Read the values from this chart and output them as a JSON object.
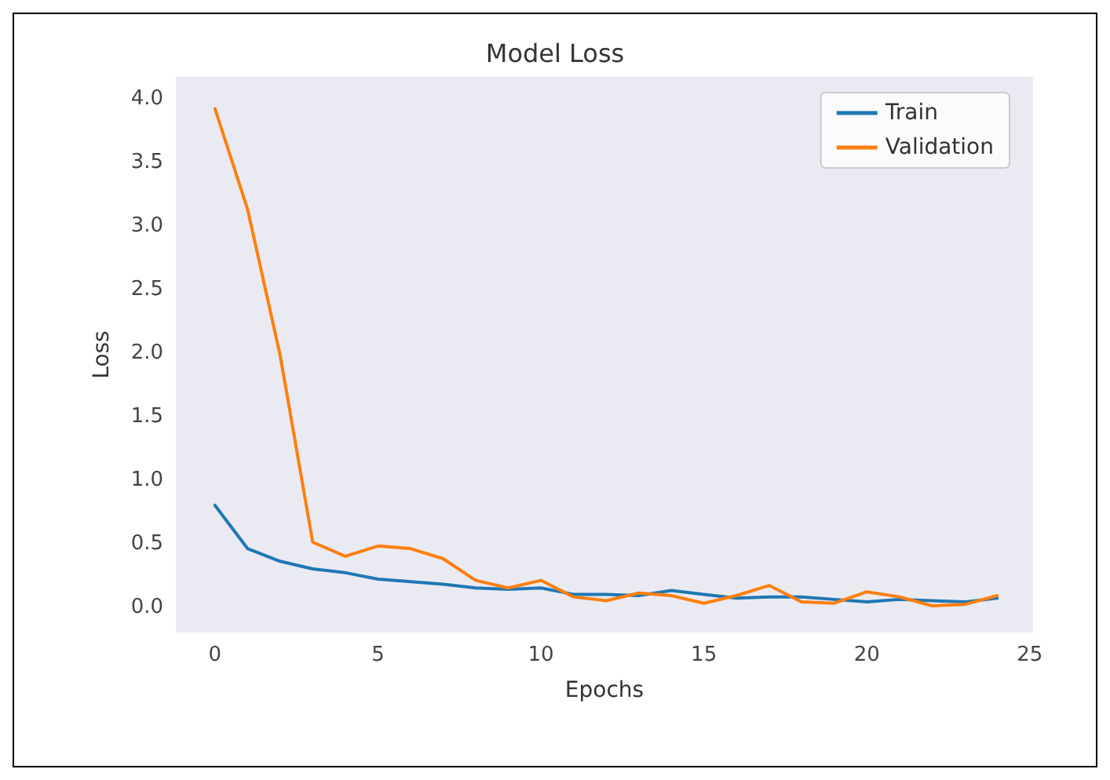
{
  "chart_data": {
    "type": "line",
    "title": "Model Loss",
    "xlabel": "Epochs",
    "ylabel": "Loss",
    "x": [
      0,
      1,
      2,
      3,
      4,
      5,
      6,
      7,
      8,
      9,
      10,
      11,
      12,
      13,
      14,
      15,
      16,
      17,
      18,
      19,
      20,
      21,
      22,
      23,
      24
    ],
    "series": [
      {
        "name": "Train",
        "color": "#1f77b4",
        "values": [
          0.8,
          0.46,
          0.36,
          0.3,
          0.27,
          0.22,
          0.2,
          0.18,
          0.15,
          0.14,
          0.15,
          0.1,
          0.1,
          0.09,
          0.13,
          0.1,
          0.07,
          0.08,
          0.08,
          0.06,
          0.04,
          0.06,
          0.05,
          0.04,
          0.07
        ]
      },
      {
        "name": "Validation",
        "color": "#ff7f0e",
        "values": [
          3.92,
          3.13,
          1.98,
          0.51,
          0.4,
          0.48,
          0.46,
          0.38,
          0.21,
          0.15,
          0.21,
          0.08,
          0.05,
          0.11,
          0.09,
          0.03,
          0.09,
          0.17,
          0.04,
          0.03,
          0.12,
          0.08,
          0.01,
          0.02,
          0.09
        ]
      }
    ],
    "xlim": [
      -1.2,
      25.1
    ],
    "xticks": [
      0,
      5,
      10,
      15,
      20,
      25
    ],
    "ylim": [
      -0.2,
      4.17
    ],
    "yticks": [
      {
        "value": 0,
        "label": "0.0"
      },
      {
        "value": 0.5,
        "label": "0.5"
      },
      {
        "value": 1,
        "label": "1.0"
      },
      {
        "value": 1.5,
        "label": "1.5"
      },
      {
        "value": 2,
        "label": "2.0"
      },
      {
        "value": 2.5,
        "label": "2.5"
      },
      {
        "value": 3,
        "label": "3.0"
      },
      {
        "value": 3.5,
        "label": "3.5"
      },
      {
        "value": 4,
        "label": "4.0"
      }
    ],
    "grid": false,
    "legend": "top right",
    "marker": "none",
    "line_style": "solid"
  }
}
